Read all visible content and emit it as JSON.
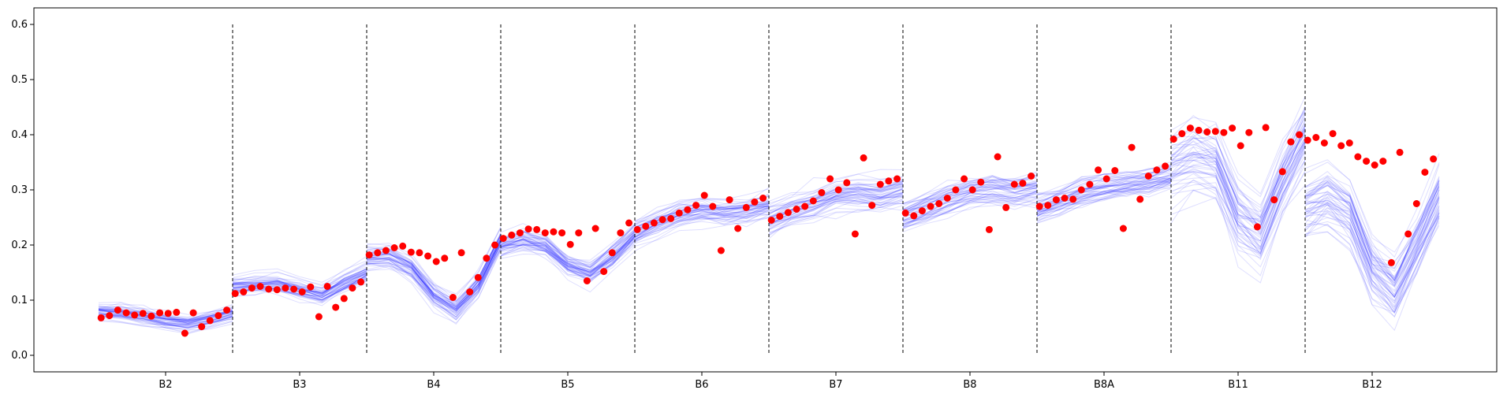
{
  "chart_data": {
    "type": "line",
    "title": "",
    "xlabel": "",
    "ylabel": "",
    "categories": [
      "B2",
      "B3",
      "B4",
      "B5",
      "B6",
      "B7",
      "B8",
      "B8A",
      "B11",
      "B12"
    ],
    "ylim": [
      -0.03,
      0.63
    ],
    "yticks": [
      0.0,
      0.1,
      0.2,
      0.3,
      0.4,
      0.5,
      0.6
    ],
    "yticklabels": [
      "0.0",
      "0.1",
      "0.2",
      "0.3",
      "0.4",
      "0.5",
      "0.6"
    ],
    "grid": false,
    "legend": "none",
    "separators": {
      "style": "dashed",
      "color": "#000000",
      "ymin": 0.0,
      "ymax": 0.6
    },
    "colors": {
      "ensemble": "#0000ff",
      "observed": "#ff0000"
    },
    "ensemble_mean": [
      {
        "band": "B2",
        "values": [
          0.08,
          0.078,
          0.072,
          0.063,
          0.058,
          0.066,
          0.077
        ]
      },
      {
        "band": "B3",
        "values": [
          0.125,
          0.128,
          0.13,
          0.12,
          0.11,
          0.132,
          0.15
        ]
      },
      {
        "band": "B4",
        "values": [
          0.178,
          0.18,
          0.16,
          0.11,
          0.085,
          0.13,
          0.21
        ]
      },
      {
        "band": "B5",
        "values": [
          0.2,
          0.21,
          0.2,
          0.165,
          0.15,
          0.18,
          0.22
        ]
      },
      {
        "band": "B6",
        "values": [
          0.22,
          0.24,
          0.255,
          0.262,
          0.258,
          0.26,
          0.272
        ]
      },
      {
        "band": "B7",
        "values": [
          0.245,
          0.262,
          0.275,
          0.29,
          0.295,
          0.29,
          0.3
        ]
      },
      {
        "band": "B8",
        "values": [
          0.25,
          0.265,
          0.28,
          0.295,
          0.3,
          0.296,
          0.302
        ]
      },
      {
        "band": "B8A",
        "values": [
          0.26,
          0.275,
          0.29,
          0.3,
          0.305,
          0.31,
          0.32
        ]
      },
      {
        "band": "B11",
        "values": [
          0.34,
          0.36,
          0.35,
          0.25,
          0.22,
          0.32,
          0.4
        ]
      },
      {
        "band": "B12",
        "values": [
          0.28,
          0.3,
          0.27,
          0.17,
          0.13,
          0.21,
          0.3
        ]
      }
    ],
    "observed": [
      [
        0.068,
        0.072,
        0.082,
        0.077,
        0.073,
        0.076,
        0.071,
        0.077,
        0.076,
        0.078,
        0.04,
        0.077,
        0.052,
        0.063,
        0.072,
        0.082
      ],
      [
        0.112,
        0.115,
        0.122,
        0.125,
        0.12,
        0.119,
        0.122,
        0.12,
        0.115,
        0.124,
        0.07,
        0.125,
        0.087,
        0.103,
        0.122,
        0.133
      ],
      [
        0.182,
        0.186,
        0.19,
        0.195,
        0.198,
        0.187,
        0.186,
        0.18,
        0.17,
        0.176,
        0.105,
        0.186,
        0.115,
        0.141,
        0.176,
        0.2
      ],
      [
        0.212,
        0.218,
        0.222,
        0.229,
        0.228,
        0.222,
        0.224,
        0.222,
        0.201,
        0.222,
        0.135,
        0.23,
        0.152,
        0.186,
        0.222,
        0.24
      ],
      [
        0.228,
        0.234,
        0.24,
        0.246,
        0.248,
        0.258,
        0.264,
        0.272,
        0.29,
        0.27,
        0.19,
        0.282,
        0.23,
        0.268,
        0.278,
        0.285
      ],
      [
        0.245,
        0.252,
        0.259,
        0.265,
        0.27,
        0.28,
        0.295,
        0.32,
        0.3,
        0.313,
        0.22,
        0.358,
        0.272,
        0.31,
        0.316,
        0.32
      ],
      [
        0.258,
        0.253,
        0.262,
        0.27,
        0.275,
        0.285,
        0.3,
        0.32,
        0.3,
        0.314,
        0.228,
        0.36,
        0.268,
        0.31,
        0.312,
        0.325
      ],
      [
        0.27,
        0.272,
        0.282,
        0.285,
        0.283,
        0.3,
        0.31,
        0.336,
        0.32,
        0.335,
        0.23,
        0.377,
        0.283,
        0.325,
        0.336,
        0.343
      ],
      [
        0.392,
        0.402,
        0.412,
        0.408,
        0.405,
        0.406,
        0.404,
        0.412,
        0.38,
        0.404,
        0.233,
        0.413,
        0.282,
        0.333,
        0.387,
        0.4
      ],
      [
        0.39,
        0.395,
        0.385,
        0.402,
        0.38,
        0.385,
        0.36,
        0.352,
        0.345,
        0.352,
        0.168,
        0.368,
        0.22,
        0.275,
        0.332,
        0.356
      ]
    ]
  }
}
